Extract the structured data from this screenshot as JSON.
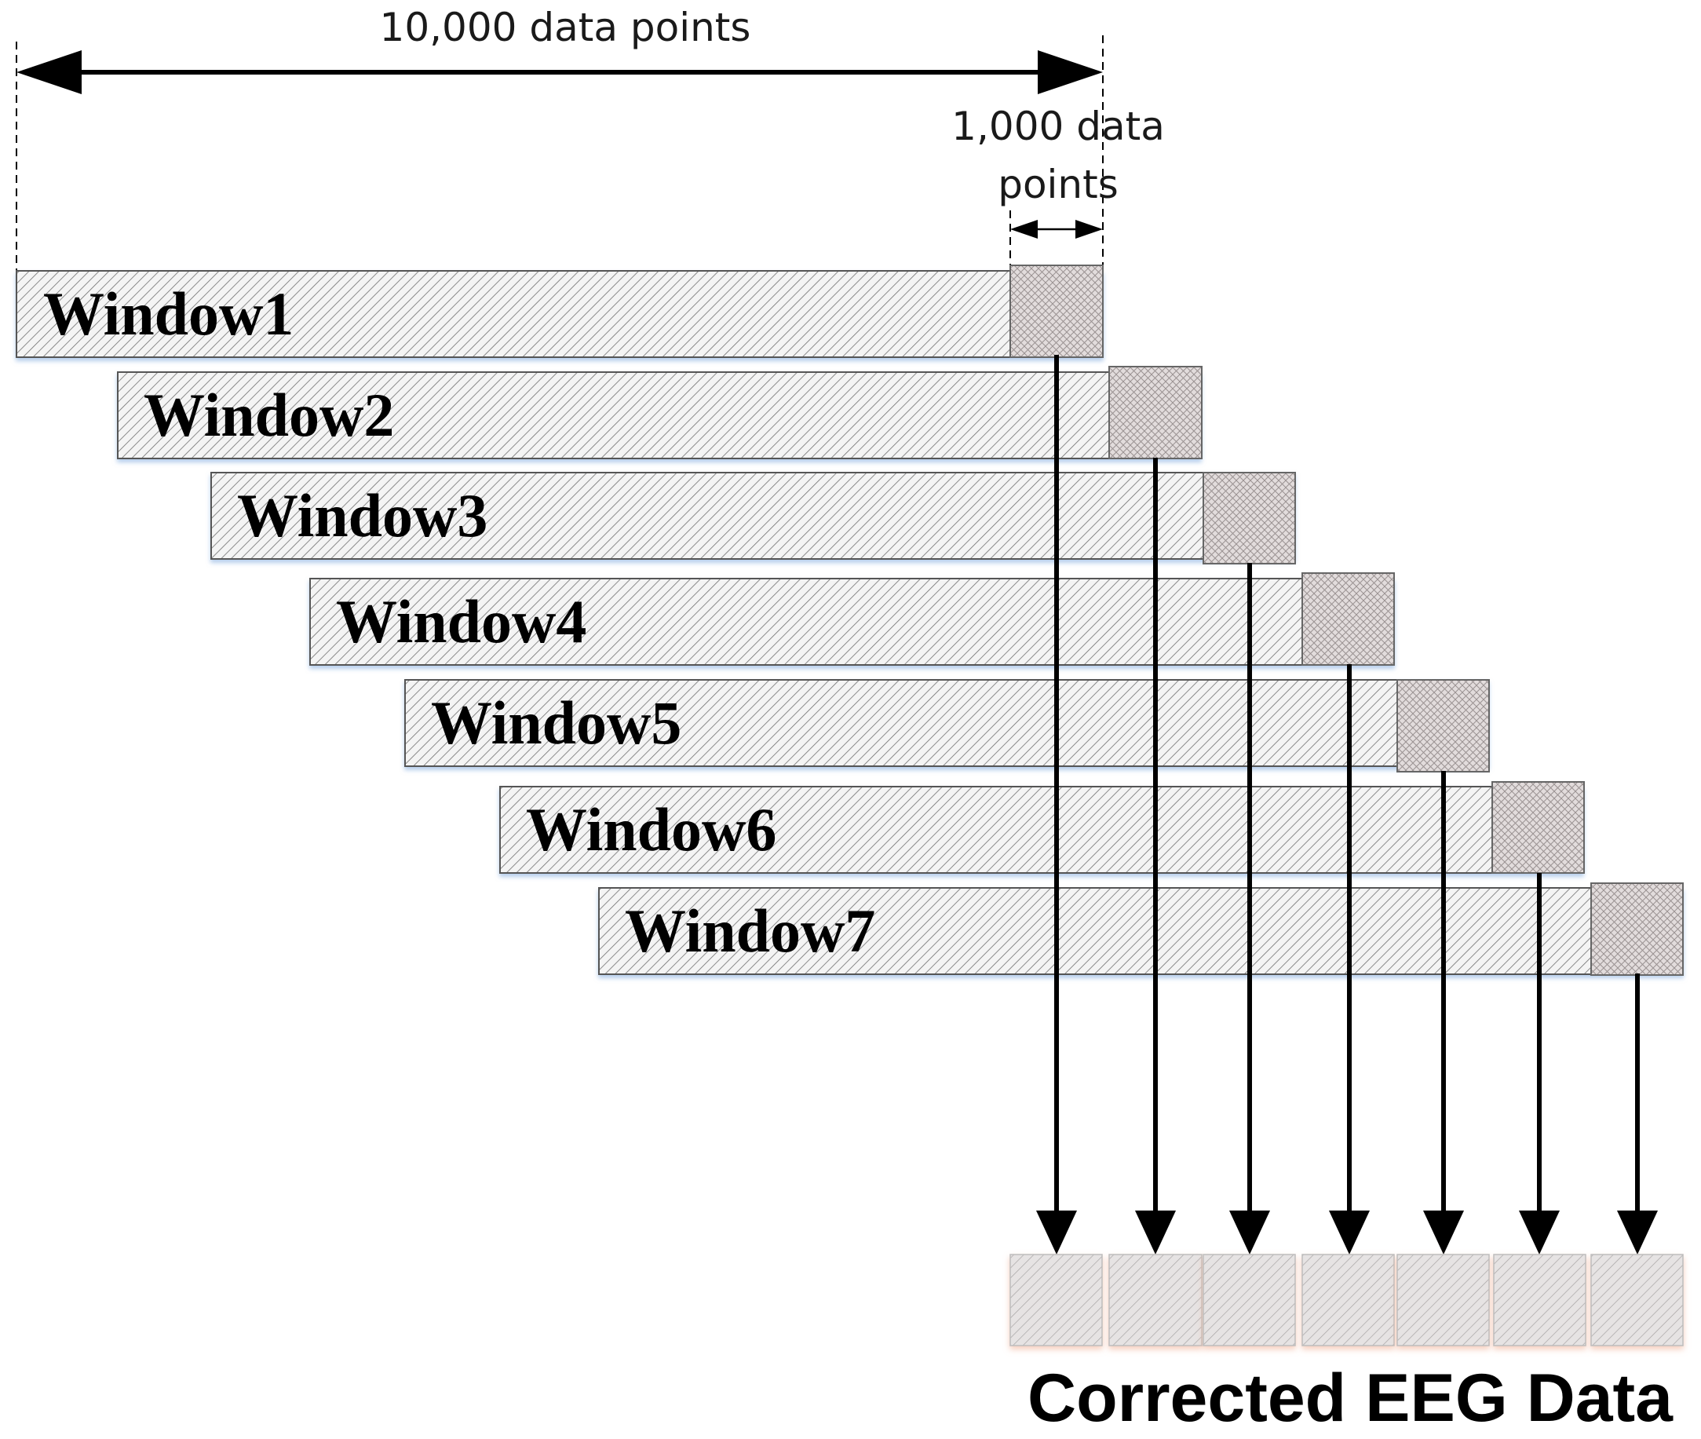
{
  "top_dimension": {
    "label": "10,000 data points"
  },
  "window_dimension": {
    "label_line1": "1,000 data",
    "label_line2": "points"
  },
  "windows": [
    {
      "label": "Window1"
    },
    {
      "label": "Window2"
    },
    {
      "label": "Window3"
    },
    {
      "label": "Window4"
    },
    {
      "label": "Window5"
    },
    {
      "label": "Window6"
    },
    {
      "label": "Window7"
    }
  ],
  "output": {
    "label": "Corrected EEG Data",
    "segment_count": 7
  }
}
